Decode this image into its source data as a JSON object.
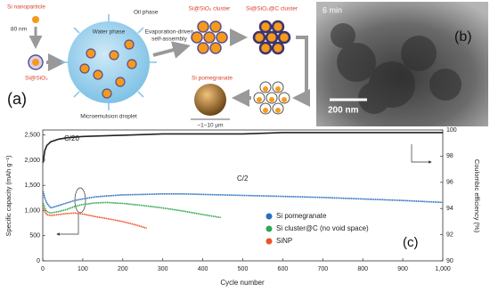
{
  "panel_a": {
    "label": "(a)",
    "nanoparticle": "Si nanoparticle",
    "size": "80 nm",
    "coated": "Si@SiO₂",
    "water": "Water phase",
    "oil": "Oil phase",
    "droplet": "Microemulsion droplet",
    "process_1": "Evaporation-driven",
    "process_2": "self-assembly",
    "cluster": "Si@SiO₂ cluster",
    "carbon_cluster": "Si@SiO₂@C cluster",
    "pomegranate": "Si pomegranate",
    "scale": "~1–10 μm"
  },
  "panel_b": {
    "label": "(b)",
    "time": "6 min",
    "scale": "200 nm"
  },
  "chart_data": {
    "type": "line",
    "panel_label": "(c)",
    "x_label": "Cycle number",
    "y_label": "Specific capacity (mAh g⁻¹)",
    "y2_label": "Coulombic efficiency (%)",
    "annotations": [
      "C/20",
      "C/2"
    ],
    "xlim": [
      0,
      1000
    ],
    "xticks": [
      0,
      100,
      200,
      300,
      400,
      500,
      600,
      700,
      800,
      900,
      {
        "value": 1000,
        "label": "1,000"
      }
    ],
    "ylim": [
      0,
      2600
    ],
    "yticks": [
      0,
      500,
      {
        "value": 1000,
        "label": "1,000"
      },
      {
        "value": 1500,
        "label": "1,500"
      },
      {
        "value": 2000,
        "label": "2,000"
      },
      {
        "value": 2500,
        "label": "2,500"
      }
    ],
    "y2lim": [
      90,
      100
    ],
    "y2ticks": [
      90,
      92,
      94,
      96,
      98,
      100
    ],
    "series": [
      {
        "name": "Si pomegranate",
        "color": "#2a6fbd",
        "x": [
          1,
          5,
          10,
          20,
          40,
          60,
          80,
          100,
          130,
          160,
          200,
          250,
          300,
          350,
          400,
          500,
          600,
          700,
          800,
          900,
          1000
        ],
        "values": [
          1380,
          1250,
          1150,
          1050,
          1100,
          1150,
          1200,
          1230,
          1270,
          1290,
          1310,
          1320,
          1330,
          1330,
          1320,
          1300,
          1280,
          1260,
          1230,
          1200,
          1160
        ]
      },
      {
        "name": "Si cluster@C (no void space)",
        "color": "#2fa84f",
        "x": [
          1,
          5,
          10,
          20,
          40,
          60,
          80,
          100,
          130,
          160,
          200,
          250,
          300,
          350,
          400,
          445
        ],
        "values": [
          1150,
          1050,
          980,
          950,
          980,
          1020,
          1080,
          1120,
          1150,
          1160,
          1140,
          1100,
          1050,
          990,
          920,
          860
        ]
      },
      {
        "name": "SiNP",
        "color": "#f0522a",
        "x": [
          1,
          5,
          10,
          20,
          40,
          60,
          80,
          100,
          130,
          160,
          200,
          230,
          260
        ],
        "values": [
          1050,
          980,
          920,
          900,
          920,
          940,
          950,
          930,
          880,
          840,
          780,
          720,
          650
        ]
      },
      {
        "color": "#222222",
        "axis": "y2",
        "x": [
          1,
          5,
          10,
          20,
          40,
          60,
          100,
          200,
          300,
          400,
          500,
          600,
          700,
          800,
          900,
          1000
        ],
        "values": [
          97.5,
          98.4,
          98.8,
          99.1,
          99.3,
          99.4,
          99.5,
          99.6,
          99.7,
          99.7,
          99.7,
          99.8,
          99.8,
          99.8,
          99.8,
          99.8
        ]
      }
    ]
  }
}
